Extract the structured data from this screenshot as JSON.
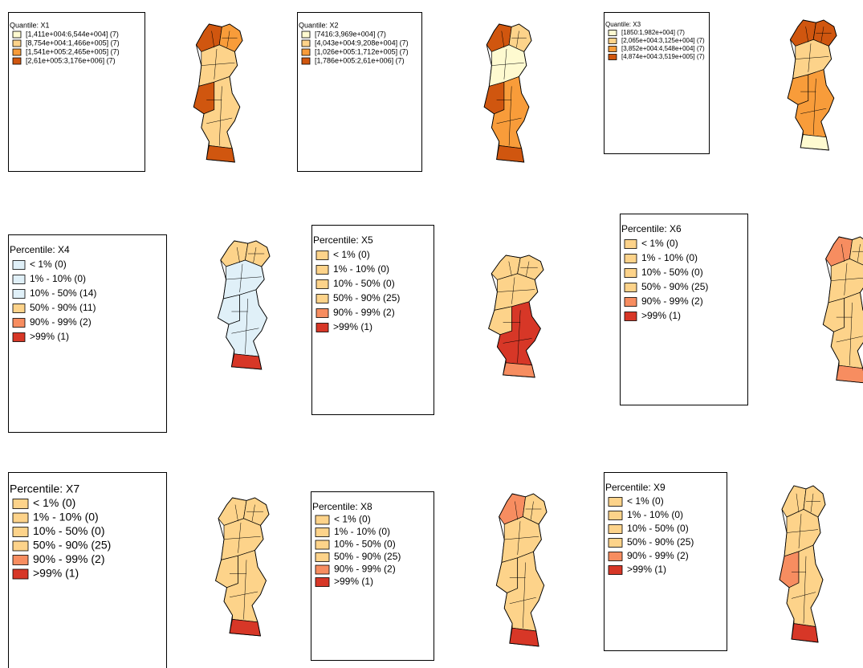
{
  "panels": [
    {
      "title": "Quantile: X1",
      "legend": [
        {
          "label": "[1,411e+004:6,544e+004] (7)",
          "color": "#fefad0"
        },
        {
          "label": "[8,754e+004:1,466e+005] (7)",
          "color": "#fdd38a"
        },
        {
          "label": "[1,541e+005:2,465e+005] (7)",
          "color": "#f89c3a"
        },
        {
          "label": "[2,61e+005:3,176e+006] (7)",
          "color": "#d0560f"
        }
      ]
    },
    {
      "title": "Quantile: X2",
      "legend": [
        {
          "label": "[7416:3,969e+004] (7)",
          "color": "#fefad0"
        },
        {
          "label": "[4,043e+004:9,208e+004] (7)",
          "color": "#fdd38a"
        },
        {
          "label": "[1,026e+005:1,712e+005] (7)",
          "color": "#f89c3a"
        },
        {
          "label": "[1,786e+005:2,61e+006] (7)",
          "color": "#d0560f"
        }
      ]
    },
    {
      "title": "Quantile: X3",
      "legend": [
        {
          "label": "[1850:1,982e+004] (7)",
          "color": "#fefad0"
        },
        {
          "label": "[2,065e+004:3,125e+004] (7)",
          "color": "#fdd38a"
        },
        {
          "label": "[3,852e+004:4,548e+004] (7)",
          "color": "#f89c3a"
        },
        {
          "label": "[4,874e+004:3,519e+005] (7)",
          "color": "#d0560f"
        }
      ]
    },
    {
      "title": "Percentile: X4",
      "legend": [
        {
          "label": "< 1% (0)",
          "color": "#e0f0f8"
        },
        {
          "label": "1% - 10% (0)",
          "color": "#e0f0f8"
        },
        {
          "label": "10% - 50% (14)",
          "color": "#e0f0f8"
        },
        {
          "label": "50% - 90% (11)",
          "color": "#fdd38a"
        },
        {
          "label": "90% - 99% (2)",
          "color": "#f78d60"
        },
        {
          "label": ">99% (1)",
          "color": "#d73727"
        }
      ]
    },
    {
      "title": "Percentile: X5",
      "legend": [
        {
          "label": "< 1% (0)",
          "color": "#fdd38a"
        },
        {
          "label": "1% - 10% (0)",
          "color": "#fdd38a"
        },
        {
          "label": "10% - 50% (0)",
          "color": "#fdd38a"
        },
        {
          "label": "50% - 90% (25)",
          "color": "#fdd38a"
        },
        {
          "label": "90% - 99% (2)",
          "color": "#f78d60"
        },
        {
          "label": ">99% (1)",
          "color": "#d73727"
        }
      ]
    },
    {
      "title": "Percentile: X6",
      "legend": [
        {
          "label": "< 1% (0)",
          "color": "#fdd38a"
        },
        {
          "label": "1% - 10% (0)",
          "color": "#fdd38a"
        },
        {
          "label": "10% - 50% (0)",
          "color": "#fdd38a"
        },
        {
          "label": "50% - 90% (25)",
          "color": "#fdd38a"
        },
        {
          "label": "90% - 99% (2)",
          "color": "#f78d60"
        },
        {
          "label": ">99% (1)",
          "color": "#d73727"
        }
      ]
    },
    {
      "title": "Percentile: X7",
      "legend": [
        {
          "label": "< 1% (0)",
          "color": "#fdd38a"
        },
        {
          "label": "1% - 10% (0)",
          "color": "#fdd38a"
        },
        {
          "label": "10% - 50% (0)",
          "color": "#fdd38a"
        },
        {
          "label": "50% - 90% (25)",
          "color": "#fdd38a"
        },
        {
          "label": "90% - 99% (2)",
          "color": "#f78d60"
        },
        {
          "label": ">99% (1)",
          "color": "#d73727"
        }
      ]
    },
    {
      "title": "Percentile: X8",
      "legend": [
        {
          "label": "< 1% (0)",
          "color": "#fdd38a"
        },
        {
          "label": "1% - 10% (0)",
          "color": "#fdd38a"
        },
        {
          "label": "10% - 50% (0)",
          "color": "#fdd38a"
        },
        {
          "label": "50% - 90% (25)",
          "color": "#fdd38a"
        },
        {
          "label": "90% - 99% (2)",
          "color": "#f78d60"
        },
        {
          "label": ">99% (1)",
          "color": "#d73727"
        }
      ]
    },
    {
      "title": "Percentile: X9",
      "legend": [
        {
          "label": "< 1% (0)",
          "color": "#fdd38a"
        },
        {
          "label": "1% - 10% (0)",
          "color": "#fdd38a"
        },
        {
          "label": "10% - 50% (0)",
          "color": "#fdd38a"
        },
        {
          "label": "50% - 90% (25)",
          "color": "#fdd38a"
        },
        {
          "label": "90% - 99% (2)",
          "color": "#f78d60"
        },
        {
          "label": ">99% (1)",
          "color": "#d73727"
        }
      ]
    }
  ]
}
